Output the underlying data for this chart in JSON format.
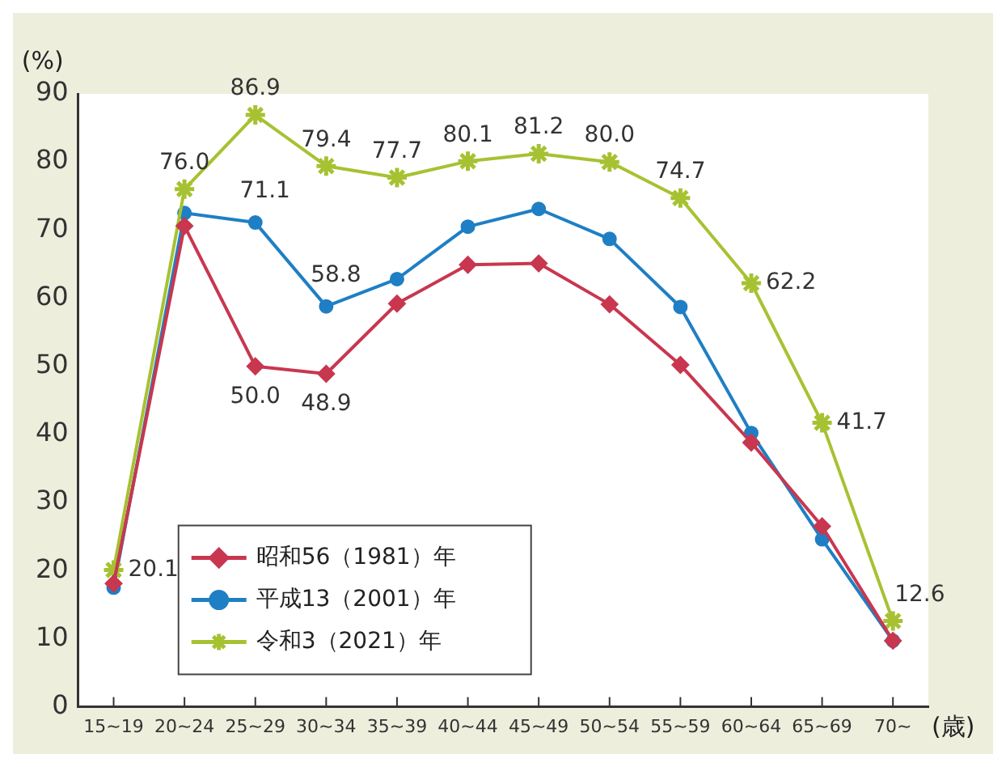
{
  "chart_data": {
    "type": "line",
    "ylabel": "(%)",
    "xlabel": "(歳)",
    "categories": [
      "15~19",
      "20~24",
      "25~29",
      "30~34",
      "35~39",
      "40~44",
      "45~49",
      "50~54",
      "55~59",
      "60~64",
      "65~69",
      "70~"
    ],
    "ylim": [
      0,
      90
    ],
    "yticks": [
      0,
      10,
      20,
      30,
      40,
      50,
      60,
      70,
      80,
      90
    ],
    "grid": false,
    "legend": "bottom left",
    "series": [
      {
        "name": "昭和56（1981）年",
        "color": "#c8374f",
        "marker": "diamond",
        "values": [
          18.1,
          70.6,
          50.0,
          48.9,
          59.2,
          64.9,
          65.1,
          59.1,
          50.2,
          38.8,
          26.5,
          9.7
        ],
        "value_labels": [
          null,
          null,
          "50.0",
          "48.9",
          null,
          null,
          null,
          null,
          null,
          null,
          null,
          null
        ]
      },
      {
        "name": "平成13（2001）年",
        "color": "#1f7fc4",
        "marker": "circle",
        "values": [
          17.5,
          72.5,
          71.1,
          58.8,
          62.8,
          70.5,
          73.1,
          68.7,
          58.7,
          40.2,
          24.6,
          9.7
        ],
        "value_labels": [
          null,
          null,
          "71.1",
          "58.8",
          null,
          null,
          null,
          null,
          null,
          null,
          null,
          null
        ]
      },
      {
        "name": "令和3（2021）年",
        "color": "#a6c232",
        "marker": "cross",
        "values": [
          20.1,
          76.0,
          86.9,
          79.4,
          77.7,
          80.1,
          81.2,
          80.0,
          74.7,
          62.2,
          41.7,
          12.6
        ],
        "value_labels": [
          "20.1",
          "76.0",
          "86.9",
          "79.4",
          "77.7",
          "80.1",
          "81.2",
          "80.0",
          "74.7",
          "62.2",
          "41.7",
          "12.6"
        ]
      }
    ]
  }
}
